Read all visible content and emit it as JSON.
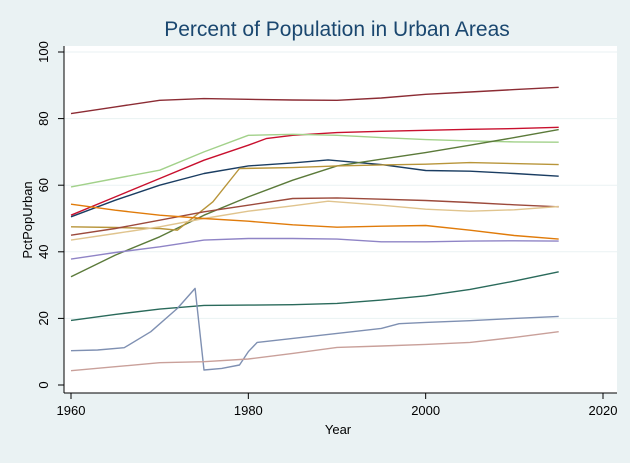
{
  "chart_data": {
    "type": "line",
    "title": "Percent of Population in Urban Areas",
    "xlabel": "Year",
    "ylabel": "PctPopUrban",
    "xlim": [
      1960,
      2020
    ],
    "ylim": [
      0,
      100
    ],
    "xticks": [
      1960,
      1980,
      2000,
      2020
    ],
    "yticks": [
      0,
      20,
      40,
      60,
      80,
      100
    ],
    "grid": "horizontal",
    "legend": "none",
    "series": [
      {
        "color": "#8c2c34",
        "points": [
          [
            1960,
            81.5
          ],
          [
            1965,
            83.5
          ],
          [
            1970,
            85.5
          ],
          [
            1975,
            86
          ],
          [
            1980,
            85.8
          ],
          [
            1985,
            85.6
          ],
          [
            1990,
            85.5
          ],
          [
            1995,
            86.2
          ],
          [
            2000,
            87.3
          ],
          [
            2005,
            88
          ],
          [
            2010,
            88.7
          ],
          [
            2015,
            89.4
          ]
        ]
      },
      {
        "color": "#c8102e",
        "points": [
          [
            1960,
            51
          ],
          [
            1965,
            56.5
          ],
          [
            1970,
            62
          ],
          [
            1975,
            67.5
          ],
          [
            1980,
            72
          ],
          [
            1982,
            74
          ],
          [
            1985,
            75
          ],
          [
            1990,
            75.8
          ],
          [
            1995,
            76.2
          ],
          [
            2000,
            76.5
          ],
          [
            2005,
            76.8
          ],
          [
            2010,
            77
          ],
          [
            2015,
            77.4
          ]
        ]
      },
      {
        "color": "#a2d18a",
        "points": [
          [
            1960,
            59.5
          ],
          [
            1965,
            62
          ],
          [
            1970,
            64.5
          ],
          [
            1975,
            70
          ],
          [
            1980,
            75
          ],
          [
            1985,
            75.3
          ],
          [
            1990,
            75
          ],
          [
            1995,
            74.3
          ],
          [
            2000,
            73.7
          ],
          [
            2005,
            73.3
          ],
          [
            2010,
            73
          ],
          [
            2015,
            72.9
          ]
        ]
      },
      {
        "color": "#1a3d62",
        "points": [
          [
            1960,
            50.5
          ],
          [
            1965,
            55.5
          ],
          [
            1970,
            60
          ],
          [
            1975,
            63.5
          ],
          [
            1980,
            65.8
          ],
          [
            1985,
            66.7
          ],
          [
            1989,
            67.6
          ],
          [
            1995,
            66.2
          ],
          [
            2000,
            64.4
          ],
          [
            2005,
            64.2
          ],
          [
            2010,
            63.5
          ],
          [
            2015,
            62.7
          ]
        ]
      },
      {
        "color": "#5b7a3a",
        "points": [
          [
            1960,
            32.5
          ],
          [
            1965,
            39
          ],
          [
            1970,
            44.5
          ],
          [
            1975,
            51
          ],
          [
            1980,
            56.5
          ],
          [
            1985,
            61.5
          ],
          [
            1990,
            65.8
          ],
          [
            1995,
            67.8
          ],
          [
            2000,
            69.8
          ],
          [
            2005,
            72
          ],
          [
            2010,
            74.3
          ],
          [
            2015,
            76.7
          ]
        ]
      },
      {
        "color": "#b8953a",
        "points": [
          [
            1960,
            47.5
          ],
          [
            1965,
            47.3
          ],
          [
            1970,
            47
          ],
          [
            1972,
            46.5
          ],
          [
            1976,
            55
          ],
          [
            1979,
            65
          ],
          [
            1985,
            65.3
          ],
          [
            1990,
            65.8
          ],
          [
            1995,
            66.1
          ],
          [
            2000,
            66.3
          ],
          [
            2005,
            66.8
          ],
          [
            2010,
            66.5
          ],
          [
            2015,
            66.2
          ]
        ]
      },
      {
        "color": "#9c4a3c",
        "points": [
          [
            1960,
            45
          ],
          [
            1965,
            47
          ],
          [
            1970,
            49.5
          ],
          [
            1975,
            52
          ],
          [
            1980,
            54
          ],
          [
            1985,
            56
          ],
          [
            1990,
            56.2
          ],
          [
            1995,
            55.8
          ],
          [
            2000,
            55.4
          ],
          [
            2005,
            54.8
          ],
          [
            2010,
            54.1
          ],
          [
            2015,
            53.5
          ]
        ]
      },
      {
        "color": "#e0c48e",
        "points": [
          [
            1960,
            43.5
          ],
          [
            1965,
            45.5
          ],
          [
            1970,
            47.5
          ],
          [
            1975,
            50
          ],
          [
            1980,
            52.2
          ],
          [
            1985,
            53.8
          ],
          [
            1989,
            55.2
          ],
          [
            1995,
            54
          ],
          [
            2000,
            52.8
          ],
          [
            2005,
            52.2
          ],
          [
            2010,
            52.6
          ],
          [
            2015,
            53.6
          ]
        ]
      },
      {
        "color": "#e07b0a",
        "points": [
          [
            1960,
            54.3
          ],
          [
            1965,
            52.5
          ],
          [
            1970,
            51
          ],
          [
            1975,
            50
          ],
          [
            1980,
            49.2
          ],
          [
            1985,
            48.1
          ],
          [
            1990,
            47.4
          ],
          [
            1995,
            47.7
          ],
          [
            2000,
            47.9
          ],
          [
            2005,
            46.5
          ],
          [
            2010,
            44.9
          ],
          [
            2015,
            43.8
          ]
        ]
      },
      {
        "color": "#8f84c6",
        "points": [
          [
            1960,
            37.8
          ],
          [
            1965,
            39.8
          ],
          [
            1970,
            41.5
          ],
          [
            1975,
            43.5
          ],
          [
            1980,
            44
          ],
          [
            1985,
            44
          ],
          [
            1990,
            43.8
          ],
          [
            1995,
            43
          ],
          [
            2000,
            43
          ],
          [
            2005,
            43.2
          ],
          [
            2010,
            43.3
          ],
          [
            2015,
            43.2
          ]
        ]
      },
      {
        "color": "#2a6a5b",
        "points": [
          [
            1960,
            19.4
          ],
          [
            1965,
            21.2
          ],
          [
            1970,
            22.8
          ],
          [
            1975,
            23.9
          ],
          [
            1980,
            24
          ],
          [
            1985,
            24.1
          ],
          [
            1990,
            24.5
          ],
          [
            1995,
            25.5
          ],
          [
            2000,
            26.8
          ],
          [
            2005,
            28.7
          ],
          [
            2010,
            31.2
          ],
          [
            2015,
            34
          ]
        ]
      },
      {
        "color": "#7f90b2",
        "points": [
          [
            1960,
            10.3
          ],
          [
            1963,
            10.5
          ],
          [
            1966,
            11.2
          ],
          [
            1969,
            16
          ],
          [
            1972,
            23
          ],
          [
            1974,
            29
          ],
          [
            1975,
            4.5
          ],
          [
            1977,
            5
          ],
          [
            1979,
            6
          ],
          [
            1980,
            10
          ],
          [
            1981,
            12.8
          ],
          [
            1985,
            14
          ],
          [
            1990,
            15.5
          ],
          [
            1995,
            17
          ],
          [
            1997,
            18.4
          ],
          [
            2000,
            18.8
          ],
          [
            2005,
            19.3
          ],
          [
            2010,
            20
          ],
          [
            2015,
            20.6
          ]
        ]
      },
      {
        "color": "#c9a09a",
        "points": [
          [
            1960,
            4.3
          ],
          [
            1965,
            5.5
          ],
          [
            1970,
            6.7
          ],
          [
            1975,
            7
          ],
          [
            1980,
            7.8
          ],
          [
            1985,
            9.5
          ],
          [
            1990,
            11.3
          ],
          [
            1995,
            11.7
          ],
          [
            2000,
            12.2
          ],
          [
            2005,
            12.8
          ],
          [
            2010,
            14.3
          ],
          [
            2015,
            16
          ]
        ]
      }
    ]
  }
}
